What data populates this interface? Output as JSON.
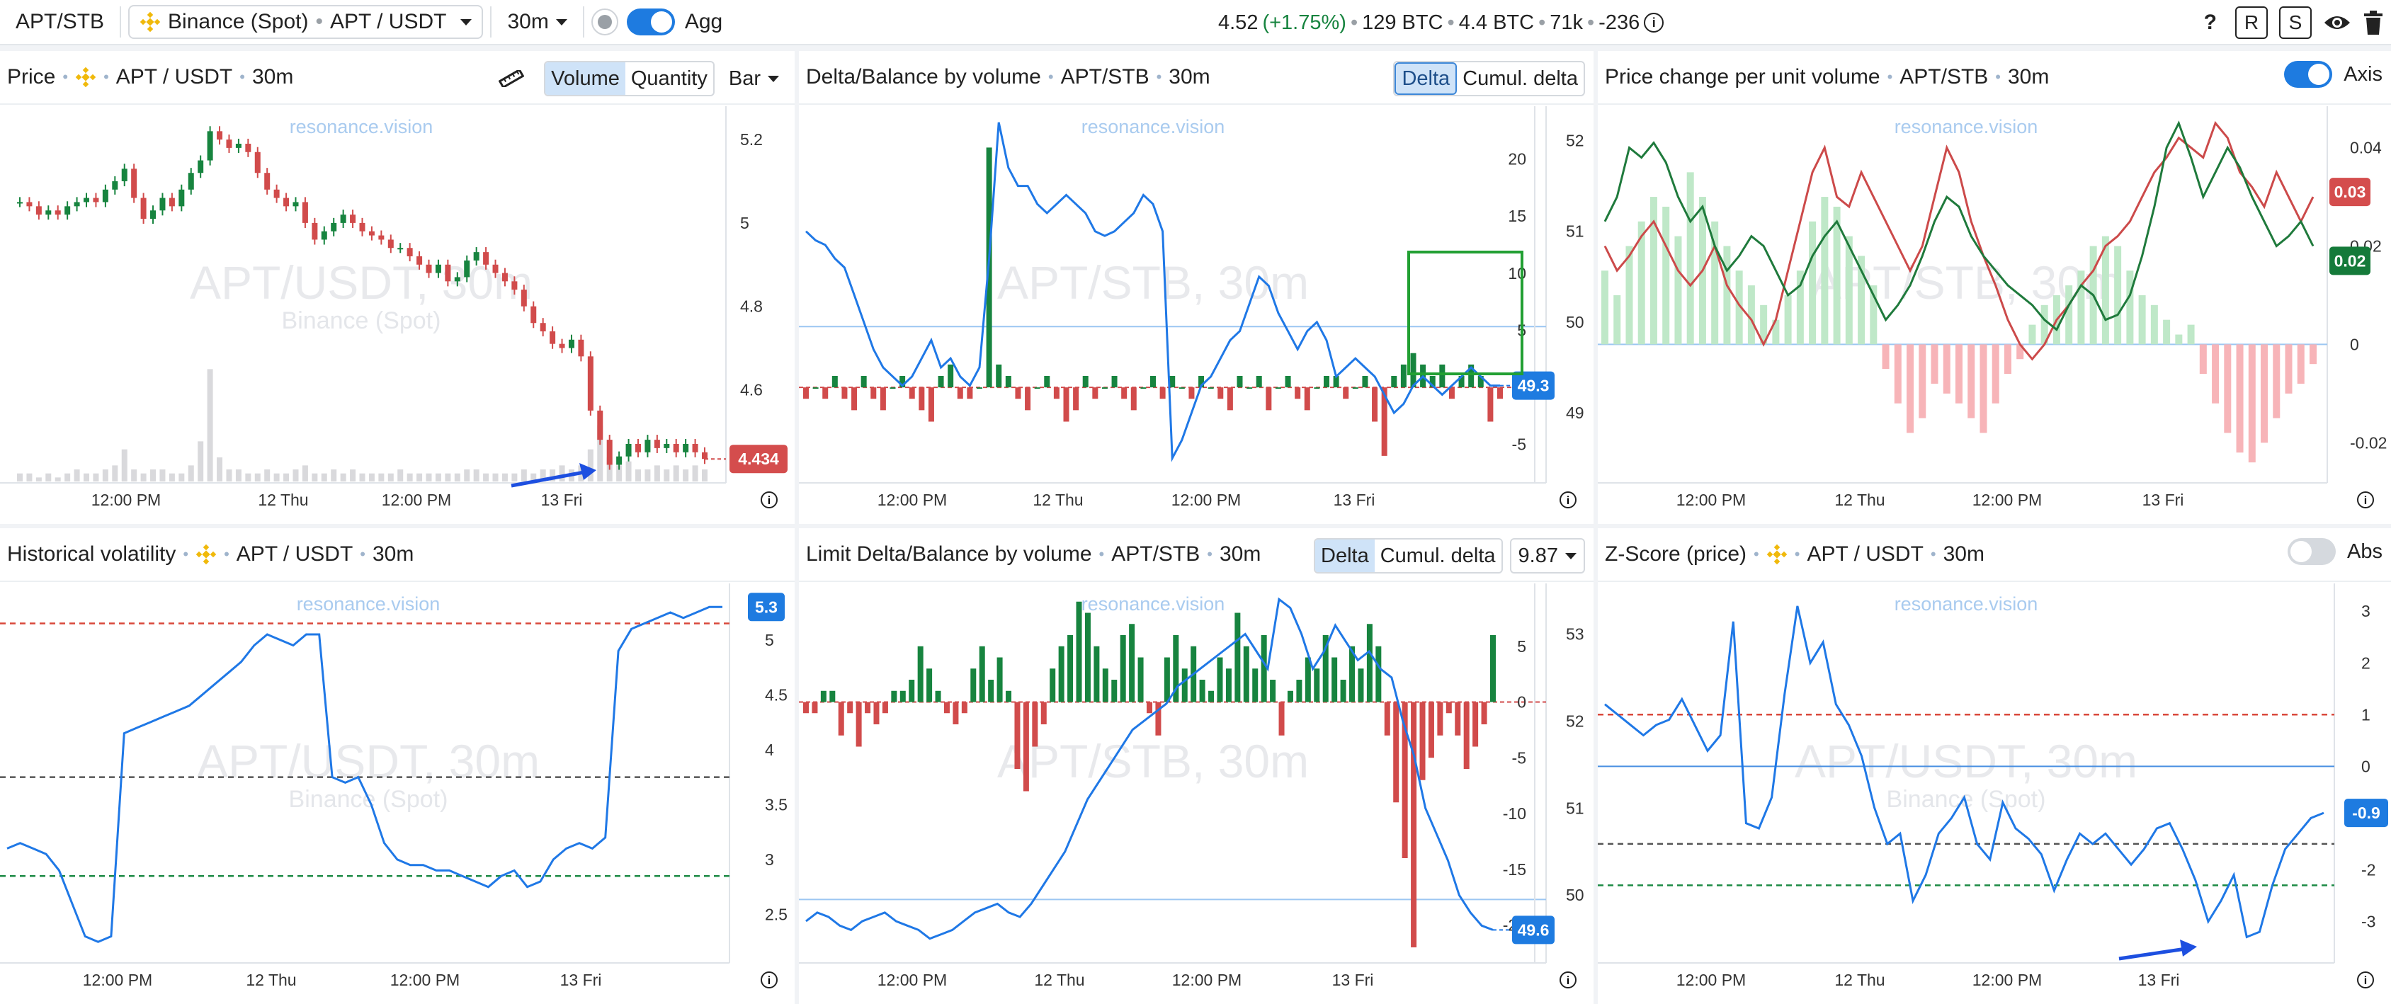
{
  "topbar": {
    "symbol": "APT/STB",
    "exchange": "Binance (Spot)",
    "pair": "APT / USDT",
    "interval": "30m",
    "agg_label": "Agg",
    "price": "4.52",
    "change": "(+1.75%)",
    "vol1": "129 BTC",
    "vol2": "4.4 BTC",
    "trades": "71k",
    "delta": "-236",
    "help": "?",
    "btn_r": "R",
    "btn_s": "S"
  },
  "colors": {
    "accent": "#1e7be0",
    "up": "#17843f",
    "down": "#d14b4b",
    "line": "#1f78e6"
  },
  "watermark": "resonance.vision",
  "panels": {
    "price": {
      "title": "Price",
      "pair": "APT / USDT",
      "interval": "30m",
      "seg_volume": "Volume",
      "seg_quantity": "Quantity",
      "type": "Bar",
      "wm": "APT/USDT, 30m",
      "wm_sub": "Binance (Spot)",
      "last": "4.434"
    },
    "delta": {
      "title": "Delta/Balance by volume",
      "pair": "APT/STB",
      "interval": "30m",
      "seg_delta": "Delta",
      "seg_cumul": "Cumul. delta",
      "wm": "APT/STB, 30m",
      "last": "49.3"
    },
    "pcpuv": {
      "title": "Price change per unit volume",
      "pair": "APT/STB",
      "interval": "30m",
      "axis_label": "Axis",
      "wm": "APT/STB, 30m",
      "tag_red": "0.03",
      "tag_green": "0.02"
    },
    "hv": {
      "title": "Historical volatility",
      "pair": "APT / USDT",
      "interval": "30m",
      "wm": "APT/USDT, 30m",
      "wm_sub": "Binance (Spot)",
      "last": "5.3"
    },
    "limit": {
      "title": "Limit Delta/Balance by volume",
      "pair": "APT/STB",
      "interval": "30m",
      "seg_delta": "Delta",
      "seg_cumul": "Cumul. delta",
      "select_value": "9.87",
      "wm": "APT/STB, 30m",
      "last": "49.6"
    },
    "z": {
      "title": "Z-Score (price)",
      "pair": "APT / USDT",
      "interval": "30m",
      "abs_label": "Abs",
      "wm": "APT/USDT, 30m",
      "wm_sub": "Binance (Spot)",
      "last": "-0.9"
    }
  },
  "chart_data": [
    {
      "id": "price",
      "type": "candlestick",
      "title": "Price",
      "xticks": [
        "12:00 PM",
        "12 Thu",
        "12:00 PM",
        "13 Fri"
      ],
      "yticks": [
        "5.2",
        "5",
        "4.8",
        "4.6"
      ],
      "ylim": [
        4.38,
        5.28
      ],
      "close": [
        5.05,
        5.04,
        5.02,
        5.03,
        5.02,
        5.04,
        5.05,
        5.06,
        5.05,
        5.08,
        5.1,
        5.13,
        5.06,
        5.01,
        5.03,
        5.06,
        5.04,
        5.08,
        5.12,
        5.15,
        5.22,
        5.2,
        5.18,
        5.19,
        5.17,
        5.12,
        5.08,
        5.06,
        5.04,
        5.05,
        5.0,
        4.96,
        4.98,
        5.0,
        5.02,
        5.0,
        4.98,
        4.97,
        4.96,
        4.94,
        4.94,
        4.92,
        4.9,
        4.88,
        4.9,
        4.86,
        4.87,
        4.91,
        4.93,
        4.9,
        4.88,
        4.86,
        4.84,
        4.8,
        4.76,
        4.74,
        4.71,
        4.7,
        4.72,
        4.68,
        4.55,
        4.48,
        4.42,
        4.44,
        4.47,
        4.45,
        4.48,
        4.46,
        4.47,
        4.45,
        4.47,
        4.45,
        4.434
      ],
      "volume": [
        2,
        2,
        1,
        2,
        1,
        2,
        3,
        2,
        2,
        3,
        4,
        8,
        3,
        2,
        3,
        3,
        2,
        2,
        4,
        10,
        28,
        6,
        3,
        3,
        2,
        2,
        3,
        2,
        2,
        3,
        4,
        2,
        2,
        3,
        2,
        3,
        2,
        2,
        2,
        2,
        3,
        2,
        2,
        2,
        2,
        2,
        2,
        3,
        3,
        2,
        2,
        2,
        2,
        3,
        2,
        3,
        3,
        4,
        3,
        4,
        8,
        14,
        6,
        4,
        5,
        3,
        3,
        4,
        3,
        4,
        3,
        4,
        3
      ]
    },
    {
      "id": "delta",
      "type": "line+bar",
      "title": "Delta/Balance by volume",
      "xticks": [
        "12:00 PM",
        "12 Thu",
        "12:00 PM",
        "13 Fri"
      ],
      "yticks_inner": [
        "20",
        "15",
        "10",
        "5",
        "0",
        "-5"
      ],
      "yticks_outer": [
        "52",
        "51",
        "50",
        "49"
      ],
      "balance_ylim": [
        48.4,
        52.3
      ],
      "delta_ylim": [
        -7,
        24
      ],
      "balance": [
        51.0,
        50.9,
        50.85,
        50.7,
        50.6,
        50.3,
        50.0,
        49.7,
        49.5,
        49.4,
        49.3,
        49.4,
        49.6,
        49.8,
        49.5,
        49.6,
        49.4,
        49.3,
        49.5,
        50.7,
        52.2,
        51.7,
        51.5,
        51.5,
        51.3,
        51.2,
        51.3,
        51.4,
        51.3,
        51.2,
        51.0,
        50.95,
        51.0,
        51.1,
        51.2,
        51.4,
        51.3,
        51.0,
        48.5,
        48.7,
        49.0,
        49.3,
        49.4,
        49.6,
        49.8,
        49.9,
        50.2,
        50.5,
        50.4,
        50.1,
        49.9,
        49.7,
        49.9,
        50.0,
        49.8,
        49.4,
        49.5,
        49.6,
        49.5,
        49.4,
        49.2,
        49.0,
        49.1,
        49.3,
        49.4,
        49.3,
        49.2,
        49.3,
        49.4,
        49.5,
        49.4,
        49.3,
        49.3
      ],
      "delta": [
        -1,
        0,
        -1,
        1,
        -1,
        -2,
        1,
        -1,
        -2,
        0,
        1,
        -1,
        -2,
        -3,
        1,
        2,
        -1,
        -1,
        0,
        21,
        2,
        1,
        -1,
        -2,
        0,
        1,
        -1,
        -3,
        -2,
        1,
        -1,
        0,
        1,
        -1,
        -2,
        0,
        1,
        -1,
        1,
        0,
        -1,
        1,
        0,
        -1,
        -2,
        1,
        0,
        1,
        -2,
        0,
        1,
        -1,
        -2,
        0,
        1,
        1,
        -1,
        0,
        1,
        -3,
        -6,
        1,
        2,
        3,
        2,
        1,
        2,
        -1,
        1,
        2,
        1,
        -3,
        -1
      ]
    },
    {
      "id": "pcpuv",
      "type": "line+bar",
      "title": "Price change per unit volume",
      "xticks": [
        "12:00 PM",
        "12 Thu",
        "12:00 PM",
        "13 Fri"
      ],
      "yticks": [
        "0.04",
        "0.02",
        "0",
        "-0.02"
      ],
      "ylim": [
        -0.025,
        0.047
      ],
      "green_line": [
        0.025,
        0.03,
        0.04,
        0.038,
        0.041,
        0.037,
        0.03,
        0.025,
        0.028,
        0.02,
        0.015,
        0.018,
        0.022,
        0.02,
        0.015,
        0.01,
        0.012,
        0.018,
        0.022,
        0.025,
        0.02,
        0.015,
        0.01,
        0.005,
        0.008,
        0.012,
        0.018,
        0.025,
        0.03,
        0.028,
        0.022,
        0.018,
        0.015,
        0.012,
        0.01,
        0.008,
        0.005,
        0.003,
        0.008,
        0.012,
        0.01,
        0.005,
        0.006,
        0.01,
        0.018,
        0.028,
        0.04,
        0.045,
        0.038,
        0.03,
        0.035,
        0.04,
        0.036,
        0.03,
        0.025,
        0.02,
        0.022,
        0.025,
        0.02
      ],
      "red_line": [
        0.02,
        0.015,
        0.018,
        0.022,
        0.025,
        0.02,
        0.015,
        0.012,
        0.015,
        0.02,
        0.012,
        0.008,
        0.005,
        0.0,
        0.005,
        0.015,
        0.025,
        0.035,
        0.04,
        0.03,
        0.028,
        0.035,
        0.03,
        0.025,
        0.02,
        0.015,
        0.02,
        0.03,
        0.04,
        0.035,
        0.025,
        0.018,
        0.012,
        0.005,
        0.0,
        -0.003,
        0.0,
        0.005,
        0.008,
        0.012,
        0.015,
        0.02,
        0.022,
        0.025,
        0.03,
        0.035,
        0.038,
        0.042,
        0.04,
        0.038,
        0.045,
        0.042,
        0.035,
        0.032,
        0.028,
        0.035,
        0.03,
        0.025,
        0.03
      ],
      "bars": [
        0.015,
        0.01,
        0.02,
        0.025,
        0.03,
        0.028,
        0.022,
        0.035,
        0.03,
        0.025,
        0.02,
        0.015,
        0.012,
        0.008,
        0.005,
        0.01,
        0.015,
        0.025,
        0.03,
        0.028,
        0.022,
        0.018,
        0.012,
        -0.005,
        -0.012,
        -0.018,
        -0.015,
        -0.008,
        -0.01,
        -0.012,
        -0.015,
        -0.018,
        -0.012,
        -0.006,
        -0.003,
        0.004,
        0.008,
        0.01,
        0.012,
        0.015,
        0.02,
        0.022,
        0.02,
        0.015,
        0.01,
        0.008,
        0.005,
        0.002,
        0.004,
        -0.006,
        -0.012,
        -0.018,
        -0.022,
        -0.024,
        -0.02,
        -0.015,
        -0.01,
        -0.008,
        -0.004
      ]
    },
    {
      "id": "hv",
      "type": "line",
      "title": "Historical volatility",
      "xticks": [
        "12:00 PM",
        "12 Thu",
        "12:00 PM",
        "13 Fri"
      ],
      "yticks": [
        "5",
        "4.5",
        "4",
        "3.5",
        "3",
        "2.5"
      ],
      "ylim": [
        2.2,
        5.45
      ],
      "levels": {
        "red": 5.15,
        "gray": 3.75,
        "green": 2.85
      },
      "values": [
        3.1,
        3.15,
        3.1,
        3.05,
        2.9,
        2.6,
        2.3,
        2.25,
        2.3,
        4.15,
        4.2,
        4.25,
        4.3,
        4.35,
        4.4,
        4.5,
        4.6,
        4.7,
        4.8,
        4.95,
        5.05,
        5.0,
        4.95,
        5.05,
        5.05,
        3.75,
        3.7,
        3.75,
        3.5,
        3.15,
        3.0,
        2.95,
        2.95,
        2.9,
        2.9,
        2.85,
        2.8,
        2.75,
        2.85,
        2.9,
        2.75,
        2.8,
        3.0,
        3.1,
        3.15,
        3.1,
        3.2,
        4.9,
        5.1,
        5.15,
        5.2,
        5.25,
        5.2,
        5.25,
        5.3,
        5.3
      ]
    },
    {
      "id": "limit",
      "type": "line+bar",
      "title": "Limit Delta/Balance by volume",
      "xticks": [
        "12:00 PM",
        "12 Thu",
        "12:00 PM",
        "13 Fri"
      ],
      "yticks_inner": [
        "5",
        "0",
        "-5",
        "-10",
        "-15",
        "-20"
      ],
      "yticks_outer": [
        "53",
        "52",
        "51",
        "50"
      ],
      "balance_ylim": [
        49.4,
        53.5
      ],
      "delta_ylim": [
        -22,
        10
      ],
      "balance": [
        49.7,
        49.8,
        49.75,
        49.65,
        49.6,
        49.7,
        49.75,
        49.8,
        49.7,
        49.65,
        49.6,
        49.5,
        49.55,
        49.6,
        49.7,
        49.8,
        49.85,
        49.9,
        49.8,
        49.75,
        49.9,
        50.1,
        50.3,
        50.5,
        50.8,
        51.1,
        51.3,
        51.5,
        51.7,
        51.9,
        52.0,
        52.1,
        52.2,
        52.4,
        52.5,
        52.6,
        52.7,
        52.8,
        52.9,
        53.0,
        52.8,
        52.6,
        53.4,
        53.3,
        53.0,
        52.6,
        52.8,
        53.1,
        52.9,
        52.7,
        52.8,
        52.6,
        52.5,
        52.0,
        51.6,
        51.0,
        50.7,
        50.4,
        50.0,
        49.8,
        49.65,
        49.6
      ]
    },
    {
      "id": "z",
      "type": "line",
      "title": "Z-Score (price)",
      "xticks": [
        "12:00 PM",
        "12 Thu",
        "12:00 PM",
        "13 Fri"
      ],
      "yticks": [
        "3",
        "2",
        "1",
        "0",
        "-1",
        "-2",
        "-3"
      ],
      "ylim": [
        -3.5,
        3.4
      ],
      "levels": {
        "red": 1.0,
        "blue": 0.0,
        "gray": -1.5,
        "green": -2.3
      },
      "values": [
        1.2,
        1.0,
        0.8,
        0.6,
        0.8,
        0.9,
        1.3,
        0.8,
        0.3,
        0.6,
        2.8,
        -1.1,
        -1.2,
        -0.6,
        1.4,
        3.1,
        2.0,
        2.4,
        1.2,
        0.8,
        0.2,
        -0.8,
        -1.5,
        -1.3,
        -2.6,
        -2.1,
        -1.3,
        -1.0,
        -0.6,
        -1.5,
        -1.8,
        -0.7,
        -1.2,
        -1.4,
        -1.7,
        -2.4,
        -1.8,
        -1.3,
        -1.5,
        -1.3,
        -1.6,
        -1.9,
        -1.6,
        -1.2,
        -1.1,
        -1.6,
        -2.2,
        -3.0,
        -2.6,
        -2.1,
        -3.3,
        -3.2,
        -2.3,
        -1.6,
        -1.3,
        -1.0,
        -0.9
      ]
    }
  ]
}
